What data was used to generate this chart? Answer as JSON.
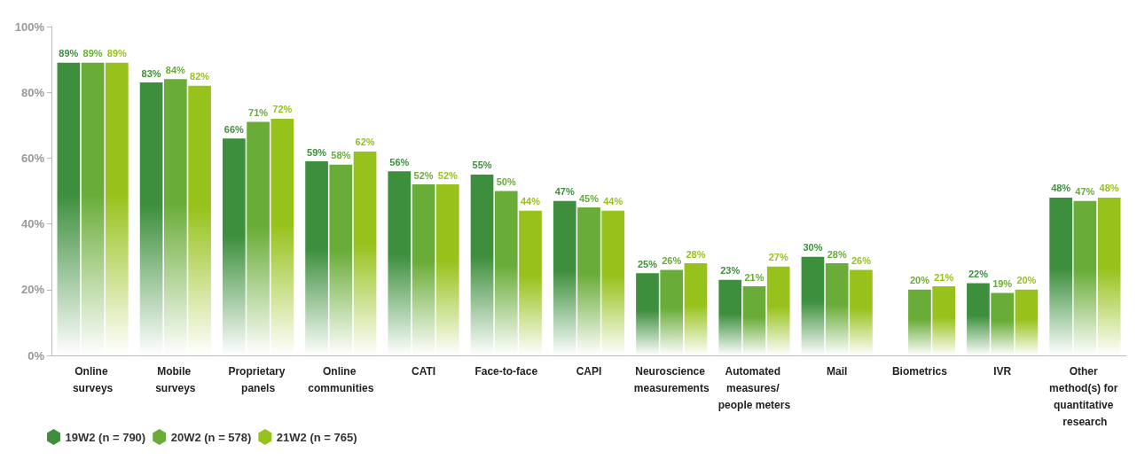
{
  "chart_data": {
    "type": "bar",
    "categories": [
      "Online surveys",
      "Mobile surveys",
      "Proprietary panels",
      "Online communities",
      "CATI",
      "Face-to-face",
      "CAPI",
      "Neuroscience measurements",
      "Automated measures/ people meters",
      "Mail",
      "Biometrics",
      "IVR",
      "Other method(s) for quantitative research"
    ],
    "series": [
      {
        "name": "19W2 (n = 790)",
        "color": "#3d8f3d",
        "values": [
          89,
          83,
          66,
          59,
          56,
          55,
          47,
          25,
          23,
          30,
          null,
          22,
          48
        ],
        "value_labels": [
          "89%",
          "83%",
          "66%",
          "59%",
          "56%",
          "55%",
          "47%",
          "25%",
          "23%",
          "30%",
          null,
          "22%",
          "48%"
        ]
      },
      {
        "name": "20W2 (n = 578)",
        "color": "#6aac38",
        "values": [
          89,
          84,
          71,
          58,
          52,
          50,
          45,
          26,
          21,
          28,
          20,
          19,
          47
        ],
        "value_labels": [
          "89%",
          "84%",
          "71%",
          "58%",
          "52%",
          "50%",
          "45%",
          "26%",
          "21%",
          "28%",
          "20%",
          "19%",
          "47%"
        ]
      },
      {
        "name": "21W2 (n = 765)",
        "color": "#97c21c",
        "values": [
          89,
          82,
          72,
          62,
          52,
          44,
          44,
          28,
          27,
          26,
          21,
          20,
          48
        ],
        "value_labels": [
          "89%",
          "82%",
          "72%",
          "62%",
          "52%",
          "44%",
          "44%",
          "28%",
          "27%",
          "26%",
          "21%",
          "20%",
          "48%"
        ]
      }
    ],
    "ylim": [
      0,
      100
    ],
    "yticks": [
      {
        "value": 0,
        "label": "0%"
      },
      {
        "value": 20,
        "label": "20%"
      },
      {
        "value": 40,
        "label": "40%"
      },
      {
        "value": 60,
        "label": "60%"
      },
      {
        "value": 80,
        "label": "80%"
      },
      {
        "value": 100,
        "label": "100%"
      }
    ],
    "grid": false,
    "legend": "bottom left"
  }
}
